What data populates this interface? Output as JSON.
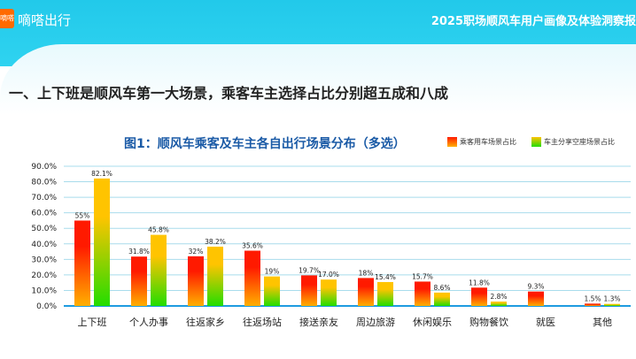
{
  "header": {
    "logo_text": "嘀嗒",
    "brand": "嘀嗒出行",
    "report_title": "2025职场顺风车用户画像及体验洞察报"
  },
  "page_title": "一、上下班是顺风车第一大场景，乘客车主选择占比分别超五成和八成",
  "chart_data": {
    "type": "bar",
    "title": "图1：顺风车乘客及车主各自出行场景分布（多选）",
    "categories": [
      "上下班",
      "个人办事",
      "往返家乡",
      "往返场站",
      "接送亲友",
      "周边旅游",
      "休闲娱乐",
      "购物餐饮",
      "就医",
      "其他"
    ],
    "series": [
      {
        "name": "乘客用车场景占比",
        "values": [
          55,
          31.8,
          32,
          35.6,
          19.7,
          18,
          15.7,
          11.8,
          9.3,
          1.5
        ],
        "labels": [
          "55%",
          "31.8%",
          "32%",
          "35.6%",
          "19.7%",
          "18%",
          "15.7%",
          "11.8%",
          "9.3%",
          "1.5%"
        ],
        "colors": [
          "#ff1a00",
          "#ffb000"
        ]
      },
      {
        "name": "车主分享空座场景占比",
        "values": [
          82.1,
          45.8,
          38.2,
          19,
          17.0,
          15.4,
          8.6,
          2.8,
          null,
          1.3
        ],
        "labels": [
          "82.1%",
          "45.8%",
          "38.2%",
          "19%",
          "17.0%",
          "15.4%",
          "8.6%",
          "2.8%",
          "",
          "1.3%"
        ],
        "colors": [
          "#ffc400",
          "#22dd00"
        ]
      }
    ],
    "yticks": [
      "0.0%",
      "10.0%",
      "20.0%",
      "30.0%",
      "40.0%",
      "50.0%",
      "60.0%",
      "70.0%",
      "80.0%",
      "90.0%"
    ],
    "ylim": [
      0,
      90
    ],
    "grid": true,
    "legend": "top-right"
  }
}
